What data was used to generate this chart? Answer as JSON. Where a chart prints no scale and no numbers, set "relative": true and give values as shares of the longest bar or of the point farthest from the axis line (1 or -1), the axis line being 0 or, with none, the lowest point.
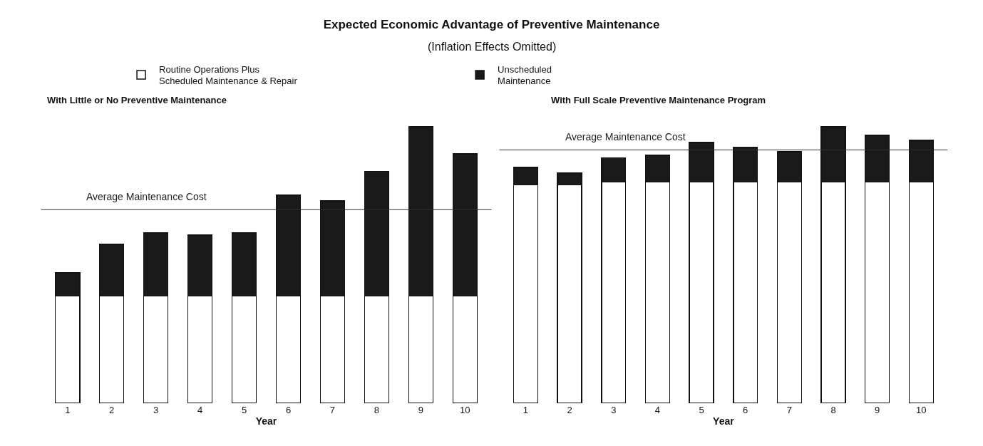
{
  "chart_data": [
    {
      "type": "bar",
      "title": "Expected Economic Advantage of Preventive Maintenance",
      "subtitle": "(Inflation Effects Omitted)",
      "annotations": [
        "With Little or No Preventive Maintenance"
      ],
      "xlabel": "Year",
      "categories": [
        "1",
        "2",
        "3",
        "4",
        "5",
        "6",
        "7",
        "8",
        "9",
        "10"
      ],
      "stacked": true,
      "relative": true,
      "grid": false,
      "legend": "top",
      "series": [
        {
          "name": "Routine Operations Plus\nScheduled Maintenance & Repair",
          "color": "#ffffff",
          "values": [
            0.388,
            0.388,
            0.388,
            0.388,
            0.388,
            0.388,
            0.388,
            0.388,
            0.388,
            0.388
          ]
        },
        {
          "name": "Unscheduled\nMaintenance",
          "color": "#1a1a1a",
          "values": [
            0.083,
            0.186,
            0.227,
            0.22,
            0.227,
            0.364,
            0.344,
            0.45,
            0.612,
            0.514
          ]
        }
      ],
      "ref_lines": [
        {
          "axis": "y",
          "value": 0.7,
          "label": "Average Maintenance Cost",
          "color": "#333333"
        }
      ]
    },
    {
      "type": "bar",
      "title": "With Full Scale Preventive Maintenance Program",
      "xlabel": "Year",
      "categories": [
        "1",
        "2",
        "3",
        "4",
        "5",
        "6",
        "7",
        "8",
        "9",
        "10"
      ],
      "stacked": true,
      "relative": true,
      "grid": false,
      "series": [
        {
          "color": "#ffffff",
          "values": [
            0.79,
            0.79,
            0.8,
            0.8,
            0.8,
            0.8,
            0.8,
            0.8,
            0.8,
            0.8
          ]
        },
        {
          "color": "#1a1a1a",
          "values": [
            0.063,
            0.042,
            0.088,
            0.097,
            0.143,
            0.126,
            0.109,
            0.2,
            0.168,
            0.151
          ]
        }
      ],
      "ref_lines": [
        {
          "axis": "y",
          "value": 0.916,
          "label": "Average Maintenance Cost",
          "color": "#333333"
        }
      ]
    }
  ]
}
